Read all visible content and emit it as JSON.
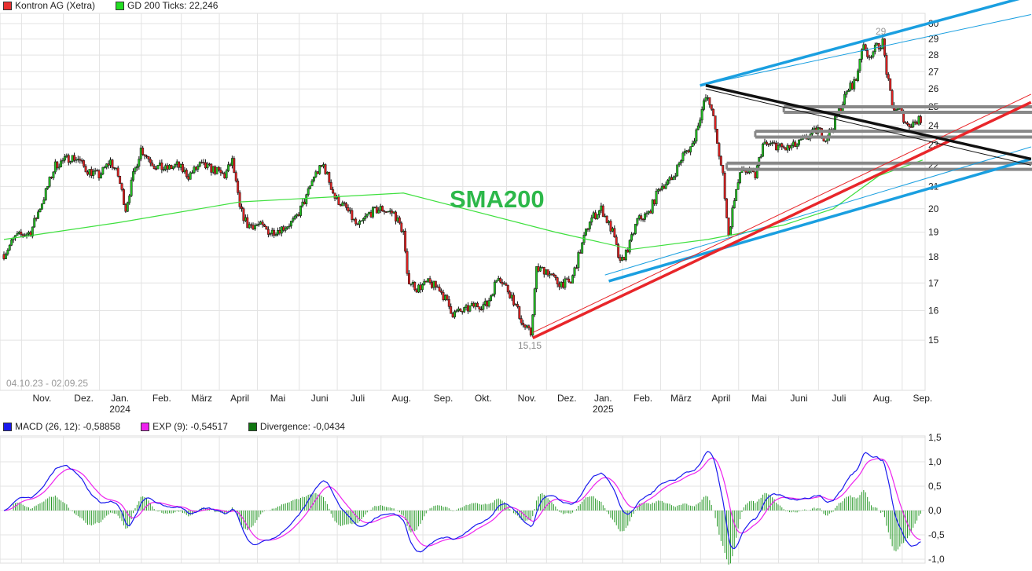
{
  "legend_top": [
    {
      "label": "Kontron AG (Xetra)",
      "color": "#e83030"
    },
    {
      "label": "GD 200 Ticks: 22,246",
      "color": "#22dd22"
    }
  ],
  "legend_macd": [
    {
      "label": "MACD (26, 12): -0,58858",
      "color": "#1a1aee"
    },
    {
      "label": "EXP (9): -0,54517",
      "color": "#ee22ee"
    },
    {
      "label": "Divergence: -0,0434",
      "color": "#117711"
    }
  ],
  "annotations": {
    "sma_label": "SMA200",
    "peak_label": "29",
    "low_label": "15,15",
    "date_range": "04.10.23 - 02.09.25"
  },
  "chart_data": [
    {
      "type": "candlestick",
      "title": "Kontron AG (Xetra)",
      "scale": "log",
      "ylim": [
        13.5,
        31
      ],
      "total_days": 483,
      "yticks": [
        "15",
        "16",
        "17",
        "18",
        "19",
        "20",
        "21",
        "22",
        "23",
        "24",
        "25",
        "26",
        "27",
        "28",
        "29",
        "30"
      ],
      "xticks": [
        {
          "label": "Nov.",
          "day": 20
        },
        {
          "label": "Dez.",
          "day": 42
        },
        {
          "label": "Jan.",
          "sub": "2024",
          "day": 61
        },
        {
          "label": "Feb.",
          "day": 83
        },
        {
          "label": "März",
          "day": 104
        },
        {
          "label": "April",
          "day": 124
        },
        {
          "label": "Mai",
          "day": 144
        },
        {
          "label": "Juni",
          "day": 166
        },
        {
          "label": "Juli",
          "day": 186
        },
        {
          "label": "Aug.",
          "day": 209
        },
        {
          "label": "Sep.",
          "day": 231
        },
        {
          "label": "Okt.",
          "day": 252
        },
        {
          "label": "Nov.",
          "day": 275
        },
        {
          "label": "Dez.",
          "day": 296
        },
        {
          "label": "Jan.",
          "sub": "2025",
          "day": 315
        },
        {
          "label": "Feb.",
          "day": 336
        },
        {
          "label": "März",
          "day": 356
        },
        {
          "label": "April",
          "day": 377
        },
        {
          "label": "Mai",
          "day": 397
        },
        {
          "label": "Juni",
          "day": 418
        },
        {
          "label": "Juli",
          "day": 439
        },
        {
          "label": "Aug.",
          "day": 462
        },
        {
          "label": "Sep.",
          "day": 483
        }
      ],
      "close_anchors": [
        [
          0,
          18.1
        ],
        [
          6,
          18.8
        ],
        [
          14,
          19.0
        ],
        [
          21,
          20.5
        ],
        [
          27,
          22.0
        ],
        [
          35,
          22.4
        ],
        [
          39,
          22.3
        ],
        [
          43,
          21.8
        ],
        [
          50,
          21.5
        ],
        [
          56,
          22.2
        ],
        [
          60,
          21.5
        ],
        [
          64,
          20.0
        ],
        [
          68,
          21.5
        ],
        [
          72,
          22.8
        ],
        [
          79,
          22.0
        ],
        [
          85,
          21.8
        ],
        [
          91,
          22.0
        ],
        [
          97,
          21.5
        ],
        [
          103,
          22.0
        ],
        [
          110,
          21.8
        ],
        [
          116,
          21.5
        ],
        [
          120,
          22.2
        ],
        [
          124,
          20.0
        ],
        [
          128,
          19.3
        ],
        [
          134,
          19.3
        ],
        [
          140,
          19.0
        ],
        [
          147,
          19.2
        ],
        [
          153,
          19.5
        ],
        [
          159,
          20.5
        ],
        [
          163,
          21.5
        ],
        [
          168,
          22.0
        ],
        [
          174,
          20.5
        ],
        [
          180,
          20.0
        ],
        [
          186,
          19.2
        ],
        [
          192,
          19.8
        ],
        [
          198,
          20.0
        ],
        [
          205,
          19.8
        ],
        [
          210,
          19.0
        ],
        [
          212,
          17.2
        ],
        [
          217,
          16.8
        ],
        [
          223,
          17.0
        ],
        [
          229,
          16.8
        ],
        [
          236,
          15.9
        ],
        [
          242,
          16.0
        ],
        [
          248,
          16.2
        ],
        [
          254,
          16.2
        ],
        [
          260,
          17.3
        ],
        [
          267,
          16.5
        ],
        [
          273,
          15.5
        ],
        [
          277,
          15.2
        ],
        [
          280,
          17.5
        ],
        [
          285,
          17.5
        ],
        [
          291,
          17.0
        ],
        [
          298,
          17.0
        ],
        [
          304,
          18.5
        ],
        [
          308,
          19.5
        ],
        [
          314,
          20.0
        ],
        [
          320,
          19.0
        ],
        [
          324,
          17.7
        ],
        [
          329,
          18.5
        ],
        [
          333,
          19.5
        ],
        [
          339,
          19.8
        ],
        [
          345,
          21.0
        ],
        [
          351,
          21.3
        ],
        [
          357,
          22.5
        ],
        [
          362,
          23.0
        ],
        [
          366,
          24.5
        ],
        [
          369,
          25.5
        ],
        [
          372,
          25.0
        ],
        [
          375,
          23.0
        ],
        [
          378,
          21.5
        ],
        [
          381,
          18.8
        ],
        [
          384,
          20.5
        ],
        [
          388,
          21.8
        ],
        [
          395,
          21.5
        ],
        [
          399,
          23.0
        ],
        [
          405,
          23.0
        ],
        [
          411,
          22.8
        ],
        [
          417,
          23.0
        ],
        [
          424,
          23.5
        ],
        [
          428,
          23.8
        ],
        [
          432,
          23.3
        ],
        [
          436,
          24.0
        ],
        [
          440,
          25.0
        ],
        [
          444,
          26.0
        ],
        [
          448,
          26.5
        ],
        [
          451,
          28.5
        ],
        [
          455,
          28.0
        ],
        [
          459,
          28.5
        ],
        [
          462,
          28.8
        ],
        [
          464,
          27.0
        ],
        [
          467,
          25.0
        ],
        [
          471,
          24.8
        ],
        [
          475,
          24.0
        ],
        [
          479,
          24.2
        ],
        [
          482,
          24.3
        ]
      ],
      "sma200": [
        [
          0,
          18.7
        ],
        [
          60,
          19.4
        ],
        [
          124,
          20.3
        ],
        [
          210,
          20.7
        ],
        [
          290,
          19.0
        ],
        [
          330,
          18.3
        ],
        [
          370,
          18.7
        ],
        [
          410,
          19.3
        ],
        [
          436,
          20.0
        ],
        [
          460,
          21.5
        ],
        [
          483,
          22.25
        ]
      ],
      "trendlines": [
        {
          "color": "#1a9fe0",
          "w": 3.5,
          "p": [
            [
              366,
              26.2
            ],
            [
              540,
              31.9
            ]
          ]
        },
        {
          "color": "#1a9fe0",
          "w": 1,
          "p": [
            [
              366,
              26.2
            ],
            [
              540,
              30.6
            ]
          ]
        },
        {
          "color": "#1a9fe0",
          "w": 3.5,
          "p": [
            [
              318,
              17.07
            ],
            [
              540,
              22.3
            ]
          ]
        },
        {
          "color": "#1a9fe0",
          "w": 1,
          "p": [
            [
              316,
              17.3
            ],
            [
              540,
              22.9
            ]
          ]
        },
        {
          "color": "#e8262a",
          "w": 3.5,
          "p": [
            [
              278,
              15.07
            ],
            [
              540,
              25.25
            ]
          ]
        },
        {
          "color": "#e8262a",
          "w": 1,
          "p": [
            [
              278,
              15.25
            ],
            [
              540,
              25.7
            ]
          ]
        },
        {
          "color": "#111111",
          "w": 3.5,
          "p": [
            [
              369,
              26.2
            ],
            [
              540,
              22.3
            ]
          ]
        },
        {
          "color": "#111111",
          "w": 1,
          "p": [
            [
              369,
              26.0
            ],
            [
              540,
              22.0
            ]
          ]
        }
      ],
      "bands": [
        {
          "from": 410,
          "hi": 25.0,
          "lo": 24.7
        },
        {
          "from": 395,
          "hi": 23.7,
          "lo": 23.4
        },
        {
          "from": 380,
          "hi": 22.1,
          "lo": 21.8
        }
      ]
    },
    {
      "type": "line",
      "title": "MACD",
      "ylim": [
        -1.0,
        1.5
      ],
      "yticks": [
        "1,5",
        "1,0",
        "0,5",
        "0,0",
        "-0,5",
        "-1,0"
      ],
      "ytick_values": [
        1.5,
        1.0,
        0.5,
        0.0,
        -0.5,
        -1.0
      ],
      "series": [
        {
          "name": "MACD (26, 12)",
          "last": -0.58858
        },
        {
          "name": "EXP (9)",
          "last": -0.54517
        },
        {
          "name": "Divergence",
          "last": -0.0434
        }
      ]
    }
  ]
}
